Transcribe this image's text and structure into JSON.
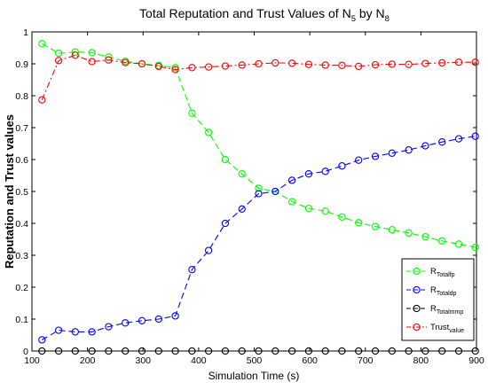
{
  "chart_data": {
    "type": "line",
    "title": {
      "text_1": "Total Reputation and Trust Values of N",
      "sub_1": "5",
      "text_2": " by N",
      "sub_2": "8"
    },
    "xlabel": "Simulation Time (s)",
    "ylabel": "Reputation and Trust values",
    "xlim": [
      100,
      900
    ],
    "ylim": [
      0,
      1
    ],
    "xticks": [
      "100",
      "200",
      "300",
      "400",
      "500",
      "600",
      "700",
      "800",
      "900"
    ],
    "yticks": [
      "0",
      "0.1",
      "0.2",
      "0.3",
      "0.4",
      "0.5",
      "0.6",
      "0.7",
      "0.8",
      "0.9",
      "1"
    ],
    "grid": false,
    "legend_position": "bottom-right",
    "x": [
      118,
      148,
      178,
      208,
      238,
      268,
      298,
      328,
      358,
      388,
      418,
      448,
      478,
      508,
      538,
      568,
      598,
      628,
      658,
      688,
      718,
      748,
      778,
      808,
      838,
      868,
      898
    ],
    "series": [
      {
        "name": "R",
        "name_sub": "Totalfp",
        "color": "#00ff00",
        "line_style": "dashed",
        "marker": "circle",
        "values": [
          0.963,
          0.933,
          0.937,
          0.935,
          0.921,
          0.908,
          0.9,
          0.895,
          0.888,
          0.745,
          0.685,
          0.6,
          0.555,
          0.51,
          0.5,
          0.468,
          0.447,
          0.438,
          0.42,
          0.402,
          0.39,
          0.38,
          0.37,
          0.358,
          0.345,
          0.335,
          0.325
        ]
      },
      {
        "name": "R",
        "name_sub": "Totaldp",
        "color": "#0000ff",
        "line_style": "dashed",
        "marker": "circle",
        "values": [
          0.035,
          0.065,
          0.06,
          0.06,
          0.076,
          0.088,
          0.095,
          0.1,
          0.11,
          0.255,
          0.315,
          0.4,
          0.445,
          0.493,
          0.5,
          0.535,
          0.555,
          0.563,
          0.58,
          0.598,
          0.61,
          0.62,
          0.63,
          0.643,
          0.655,
          0.665,
          0.673
        ]
      },
      {
        "name": "R",
        "name_sub": "Totalmmp",
        "color": "#000000",
        "line_style": "dashed",
        "marker": "circle",
        "values": [
          0,
          0,
          0,
          0,
          0,
          0,
          0,
          0,
          0,
          0,
          0,
          0,
          0,
          0,
          0,
          0,
          0,
          0,
          0,
          0,
          0,
          0,
          0,
          0,
          0,
          0,
          0
        ]
      },
      {
        "name": "Trust",
        "name_sub": "value",
        "color": "#ff0000",
        "line_style": "dash-dot",
        "marker": "circle",
        "values": [
          0.787,
          0.91,
          0.927,
          0.907,
          0.912,
          0.904,
          0.9,
          0.892,
          0.882,
          0.888,
          0.89,
          0.893,
          0.896,
          0.9,
          0.903,
          0.902,
          0.898,
          0.896,
          0.895,
          0.892,
          0.897,
          0.899,
          0.898,
          0.901,
          0.903,
          0.905,
          0.905
        ]
      }
    ]
  }
}
